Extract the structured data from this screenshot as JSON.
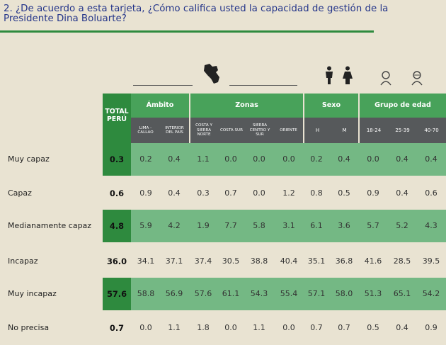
{
  "question": "2. ¿De acuerdo a esta tarjeta, ¿Cómo califica usted la capacidad de gestión de la Presidente Dina Boluarte?",
  "header": {
    "total": "TOTAL\nPERÚ",
    "groups": {
      "ambito": "Ámbito",
      "zonas": "Zonas",
      "sexo": "Sexo",
      "edad": "Grupo de edad"
    },
    "subs": [
      "LIMA - CALLAO",
      "INTERIOR DEL PAÍS",
      "COSTA Y SIERRA NORTE",
      "COSTA SUR",
      "SIERRA CENTRO Y SUR",
      "ORIENTE",
      "H",
      "M",
      "18-24",
      "25-39",
      "40-70"
    ]
  },
  "rows": [
    {
      "label": "Muy capaz",
      "total": "0.3",
      "values": [
        "0.2",
        "0.4",
        "1.1",
        "0.0",
        "0.0",
        "0.0",
        "0.2",
        "0.4",
        "0.0",
        "0.4",
        "0.4"
      ],
      "shaded": true
    },
    {
      "label": "Capaz",
      "total": "0.6",
      "values": [
        "0.9",
        "0.4",
        "0.3",
        "0.7",
        "0.0",
        "1.2",
        "0.8",
        "0.5",
        "0.9",
        "0.4",
        "0.6"
      ],
      "shaded": false
    },
    {
      "label": "Medianamente capaz",
      "total": "4.8",
      "values": [
        "5.9",
        "4.2",
        "1.9",
        "7.7",
        "5.8",
        "3.1",
        "6.1",
        "3.6",
        "5.7",
        "5.2",
        "4.3"
      ],
      "shaded": true
    },
    {
      "label": "Incapaz",
      "total": "36.0",
      "values": [
        "34.1",
        "37.1",
        "37.4",
        "30.5",
        "38.8",
        "40.4",
        "35.1",
        "36.8",
        "41.6",
        "28.5",
        "39.5"
      ],
      "shaded": false
    },
    {
      "label": "Muy incapaz",
      "total": "57.6",
      "values": [
        "58.8",
        "56.9",
        "57.6",
        "61.1",
        "54.3",
        "55.4",
        "57.1",
        "58.0",
        "51.3",
        "65.1",
        "54.2"
      ],
      "shaded": true
    },
    {
      "label": "No precisa",
      "total": "0.7",
      "values": [
        "0.0",
        "1.1",
        "1.8",
        "0.0",
        "1.1",
        "0.0",
        "0.7",
        "0.7",
        "0.5",
        "0.4",
        "0.9"
      ],
      "shaded": false
    }
  ],
  "icons": [
    "peru-map-icon",
    "male-icon",
    "female-icon",
    "young-person-icon",
    "elder-person-icon"
  ],
  "colors": {
    "dark_green": "#2e8a3e",
    "mid_green": "#48a25a",
    "light_green": "#74b884",
    "gray": "#56595b",
    "title_blue": "#24358a"
  }
}
